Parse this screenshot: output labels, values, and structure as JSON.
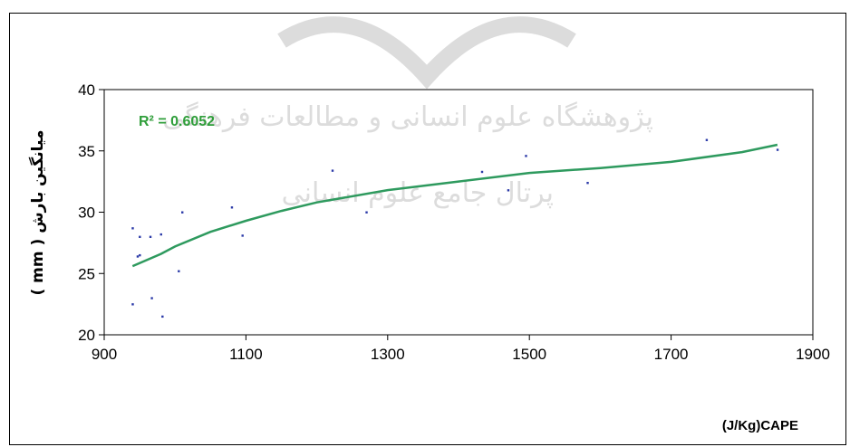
{
  "chart_data": {
    "type": "scatter",
    "xlabel": "(J/Kg)CAPE",
    "ylabel": "( mm ) میانگین بارش",
    "xlim": [
      900,
      1900
    ],
    "ylim": [
      20,
      40
    ],
    "xticks": [
      900,
      1100,
      1300,
      1500,
      1700,
      1900
    ],
    "yticks": [
      20,
      25,
      30,
      35,
      40
    ],
    "grid": false,
    "r_squared_label": "R² = 0.6052",
    "watermark": [
      "پژوهشگاه علوم انسانی و مطالعات فرهنگی",
      "پرتال جامع علوم انسانی"
    ],
    "colors": {
      "points": "#2b3aa8",
      "trend": "#2e9a5e",
      "r2_text": "#2f9e3a"
    },
    "points": [
      [
        940,
        28.7
      ],
      [
        940,
        22.5
      ],
      [
        947,
        26.4
      ],
      [
        950,
        28.0
      ],
      [
        950,
        26.5
      ],
      [
        965,
        28.0
      ],
      [
        967,
        23.0
      ],
      [
        980,
        28.2
      ],
      [
        982,
        21.5
      ],
      [
        1005,
        25.2
      ],
      [
        1010,
        30.0
      ],
      [
        1080,
        30.4
      ],
      [
        1095,
        28.1
      ],
      [
        1222,
        33.4
      ],
      [
        1270,
        30.0
      ],
      [
        1433,
        33.3
      ],
      [
        1470,
        31.8
      ],
      [
        1495,
        34.6
      ],
      [
        1582,
        32.4
      ],
      [
        1750,
        35.9
      ],
      [
        1850,
        35.1
      ]
    ],
    "trendline": [
      [
        940,
        25.6
      ],
      [
        980,
        26.6
      ],
      [
        1000,
        27.2
      ],
      [
        1050,
        28.4
      ],
      [
        1100,
        29.3
      ],
      [
        1150,
        30.1
      ],
      [
        1200,
        30.8
      ],
      [
        1300,
        31.8
      ],
      [
        1400,
        32.5
      ],
      [
        1500,
        33.2
      ],
      [
        1600,
        33.6
      ],
      [
        1700,
        34.1
      ],
      [
        1800,
        34.9
      ],
      [
        1850,
        35.5
      ]
    ]
  }
}
